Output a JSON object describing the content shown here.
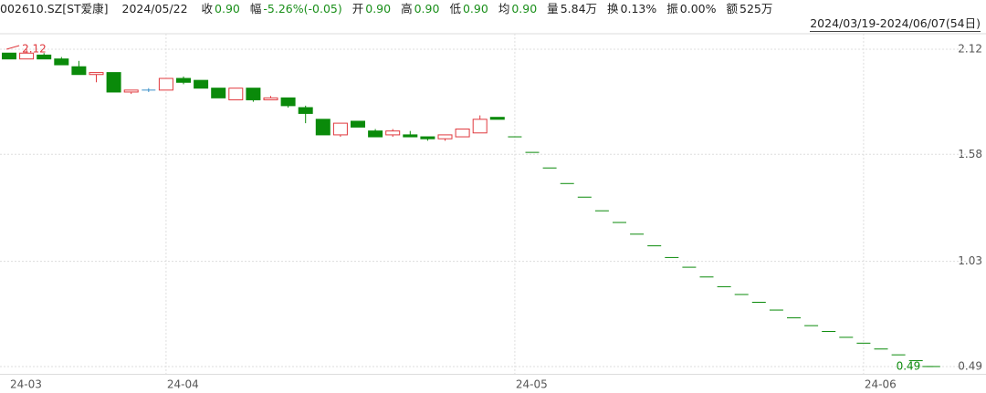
{
  "header": {
    "code": "002610.SZ[ST爱康]",
    "date": "2024/05/22",
    "range": "2024/03/19-2024/06/07(54日)",
    "fields": [
      {
        "label": "收",
        "value": "0.90",
        "color": "#1a8f1a"
      },
      {
        "label": "幅",
        "value": "-5.26%(-0.05)",
        "color": "#1a8f1a"
      },
      {
        "label": "开",
        "value": "0.90",
        "color": "#1a8f1a"
      },
      {
        "label": "高",
        "value": "0.90",
        "color": "#1a8f1a"
      },
      {
        "label": "低",
        "value": "0.90",
        "color": "#1a8f1a"
      },
      {
        "label": "均",
        "value": "0.90",
        "color": "#1a8f1a"
      },
      {
        "label": "量",
        "value": "5.84万",
        "color": "#222222"
      },
      {
        "label": "换",
        "value": "0.13%",
        "color": "#222222"
      },
      {
        "label": "振",
        "value": "0.00%",
        "color": "#222222"
      },
      {
        "label": "额",
        "value": "525万",
        "color": "#222222"
      }
    ]
  },
  "chart_data": {
    "type": "candlestick",
    "categories": [
      "24-03",
      null,
      null,
      null,
      null,
      null,
      null,
      null,
      null,
      "24-04",
      null,
      null,
      null,
      null,
      null,
      null,
      null,
      null,
      null,
      null,
      null,
      null,
      null,
      null,
      null,
      null,
      null,
      null,
      null,
      "24-05",
      null,
      null,
      null,
      null,
      null,
      null,
      null,
      null,
      null,
      null,
      null,
      null,
      null,
      null,
      null,
      null,
      null,
      null,
      null,
      "24-06",
      null,
      null,
      null,
      null
    ],
    "open": [
      2.1,
      2.07,
      2.09,
      2.07,
      2.03,
      1.99,
      2.0,
      1.9,
      1.91,
      1.91,
      1.97,
      1.96,
      1.92,
      1.86,
      1.92,
      1.86,
      1.87,
      1.82,
      1.76,
      1.68,
      1.75,
      1.7,
      1.68,
      1.68,
      1.67,
      1.66,
      1.67,
      1.69,
      1.77,
      1.67,
      1.59,
      1.51,
      1.43,
      1.36,
      1.29,
      1.23,
      1.17,
      1.11,
      1.05,
      1.0,
      0.95,
      0.9,
      0.86,
      0.82,
      0.78,
      0.74,
      0.7,
      0.67,
      0.64,
      0.61,
      0.58,
      0.55,
      0.52,
      0.49
    ],
    "high": [
      2.1,
      2.12,
      2.1,
      2.08,
      2.06,
      2.0,
      2.0,
      1.91,
      1.92,
      1.97,
      1.98,
      1.96,
      1.92,
      1.92,
      1.92,
      1.88,
      1.87,
      1.83,
      1.76,
      1.74,
      1.75,
      1.71,
      1.71,
      1.7,
      1.67,
      1.68,
      1.71,
      1.78,
      1.77,
      1.67,
      1.59,
      1.51,
      1.43,
      1.36,
      1.29,
      1.23,
      1.17,
      1.11,
      1.05,
      1.0,
      0.95,
      0.9,
      0.86,
      0.82,
      0.78,
      0.74,
      0.7,
      0.67,
      0.64,
      0.61,
      0.58,
      0.55,
      0.52,
      0.49
    ],
    "low": [
      2.07,
      2.07,
      2.07,
      2.04,
      1.99,
      1.95,
      1.9,
      1.89,
      1.9,
      1.91,
      1.94,
      1.92,
      1.87,
      1.86,
      1.85,
      1.86,
      1.82,
      1.74,
      1.68,
      1.67,
      1.72,
      1.67,
      1.67,
      1.67,
      1.65,
      1.65,
      1.67,
      1.69,
      1.76,
      1.67,
      1.59,
      1.51,
      1.43,
      1.36,
      1.29,
      1.23,
      1.17,
      1.11,
      1.05,
      1.0,
      0.95,
      0.9,
      0.86,
      0.82,
      0.78,
      0.74,
      0.7,
      0.67,
      0.64,
      0.61,
      0.58,
      0.55,
      0.52,
      0.49
    ],
    "close": [
      2.07,
      2.1,
      2.07,
      2.04,
      1.99,
      2.0,
      1.9,
      1.91,
      1.91,
      1.97,
      1.95,
      1.92,
      1.87,
      1.92,
      1.86,
      1.87,
      1.83,
      1.79,
      1.68,
      1.74,
      1.72,
      1.67,
      1.7,
      1.67,
      1.66,
      1.68,
      1.71,
      1.76,
      1.76,
      1.67,
      1.59,
      1.51,
      1.43,
      1.36,
      1.29,
      1.23,
      1.17,
      1.11,
      1.05,
      1.0,
      0.95,
      0.9,
      0.86,
      0.82,
      0.78,
      0.74,
      0.7,
      0.67,
      0.64,
      0.61,
      0.58,
      0.55,
      0.52,
      0.49
    ],
    "ylim": [
      0.45,
      2.2
    ],
    "yticks": [
      2.12,
      1.58,
      1.03,
      0.49
    ],
    "grid": true,
    "up_color": "#e0393e",
    "down_color": "#0a8a0a",
    "flat_color": "#3a8fc8",
    "max_label": 2.12,
    "min_label": 0.49
  }
}
